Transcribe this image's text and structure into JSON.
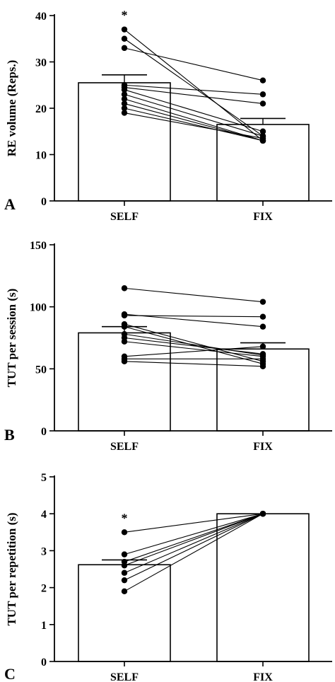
{
  "chart_data": [
    {
      "panel_label": "A",
      "type": "bar",
      "categories": [
        "SELF",
        "FIX"
      ],
      "bar_means": [
        25.5,
        16.5
      ],
      "error_upper": [
        27.2,
        17.8
      ],
      "ylabel": "RE volume (Reps.)",
      "ylim": [
        0,
        40
      ],
      "yticks": [
        0,
        10,
        20,
        30,
        40
      ],
      "annotation": "*",
      "annotation_category": "SELF",
      "individual_pairs": [
        [
          37,
          13
        ],
        [
          35,
          14
        ],
        [
          33,
          26
        ],
        [
          25,
          23
        ],
        [
          24.5,
          21
        ],
        [
          24,
          15
        ],
        [
          23,
          14
        ],
        [
          22,
          13
        ],
        [
          21,
          13
        ],
        [
          20,
          13
        ],
        [
          19,
          13.5
        ]
      ]
    },
    {
      "panel_label": "B",
      "type": "bar",
      "categories": [
        "SELF",
        "FIX"
      ],
      "bar_means": [
        79,
        66
      ],
      "error_upper": [
        84,
        71
      ],
      "ylabel": "TUT per session (s)",
      "ylim": [
        0,
        150
      ],
      "yticks": [
        0,
        50,
        100,
        150
      ],
      "individual_pairs": [
        [
          115,
          104
        ],
        [
          94,
          84
        ],
        [
          93,
          92
        ],
        [
          86,
          56
        ],
        [
          84,
          54
        ],
        [
          78,
          61
        ],
        [
          75,
          62
        ],
        [
          72,
          60
        ],
        [
          60,
          68
        ],
        [
          58,
          58
        ],
        [
          56,
          52
        ]
      ]
    },
    {
      "panel_label": "C",
      "type": "bar",
      "categories": [
        "SELF",
        "FIX"
      ],
      "bar_means": [
        2.62,
        4.0
      ],
      "error_upper": [
        2.75,
        4.0
      ],
      "ylabel": "TUT per repetition (s)",
      "ylim": [
        0,
        5
      ],
      "yticks": [
        0,
        1,
        2,
        3,
        4,
        5
      ],
      "annotation": "*",
      "annotation_category": "SELF",
      "individual_pairs": [
        [
          3.5,
          4.0
        ],
        [
          2.9,
          4.0
        ],
        [
          2.7,
          4.0
        ],
        [
          2.6,
          4.0
        ],
        [
          2.4,
          4.0
        ],
        [
          2.2,
          4.0
        ],
        [
          1.9,
          4.0
        ]
      ]
    }
  ]
}
